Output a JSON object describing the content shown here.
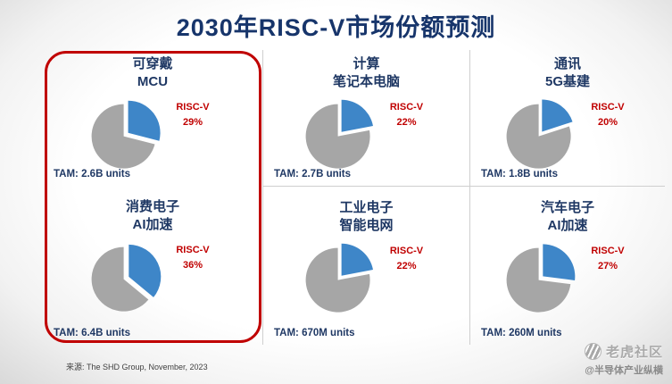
{
  "title": "2030年RISC-V市场份额预测",
  "source": "来源: The SHD Group, November, 2023",
  "watermark": {
    "brand": "老虎社区",
    "handle": "@半导体产业纵横"
  },
  "colors": {
    "title_navy": "#17356B",
    "label_red": "#C00000",
    "pie_gray": "#A6A6A6",
    "pie_blue": "#3E86C8",
    "highlight_border": "#C00000"
  },
  "chart_data": [
    {
      "type": "pie",
      "title_line1": "可穿戴",
      "title_line2": "MCU",
      "label": "RISC-V",
      "pct_label": "29%",
      "tam": "TAM: 2.6B units",
      "highlighted": true,
      "slices": [
        {
          "name": "RISC-V",
          "value": 29
        },
        {
          "name": "Other",
          "value": 71
        }
      ]
    },
    {
      "type": "pie",
      "title_line1": "计算",
      "title_line2": "笔记本电脑",
      "label": "RISC-V",
      "pct_label": "22%",
      "tam": "TAM: 2.7B units",
      "highlighted": false,
      "slices": [
        {
          "name": "RISC-V",
          "value": 22
        },
        {
          "name": "Other",
          "value": 78
        }
      ]
    },
    {
      "type": "pie",
      "title_line1": "通讯",
      "title_line2": "5G基建",
      "label": "RISC-V",
      "pct_label": "20%",
      "tam": "TAM: 1.8B units",
      "highlighted": false,
      "slices": [
        {
          "name": "RISC-V",
          "value": 20
        },
        {
          "name": "Other",
          "value": 80
        }
      ]
    },
    {
      "type": "pie",
      "title_line1": "消费电子",
      "title_line2": "AI加速",
      "label": "RISC-V",
      "pct_label": "36%",
      "tam": "TAM: 6.4B units",
      "highlighted": true,
      "slices": [
        {
          "name": "RISC-V",
          "value": 36
        },
        {
          "name": "Other",
          "value": 64
        }
      ]
    },
    {
      "type": "pie",
      "title_line1": "工业电子",
      "title_line2": "智能电网",
      "label": "RISC-V",
      "pct_label": "22%",
      "tam": "TAM: 670M units",
      "highlighted": false,
      "slices": [
        {
          "name": "RISC-V",
          "value": 22
        },
        {
          "name": "Other",
          "value": 78
        }
      ]
    },
    {
      "type": "pie",
      "title_line1": "汽车电子",
      "title_line2": "AI加速",
      "label": "RISC-V",
      "pct_label": "27%",
      "tam": "TAM: 260M units",
      "highlighted": false,
      "slices": [
        {
          "name": "RISC-V",
          "value": 27
        },
        {
          "name": "Other",
          "value": 73
        }
      ]
    }
  ]
}
